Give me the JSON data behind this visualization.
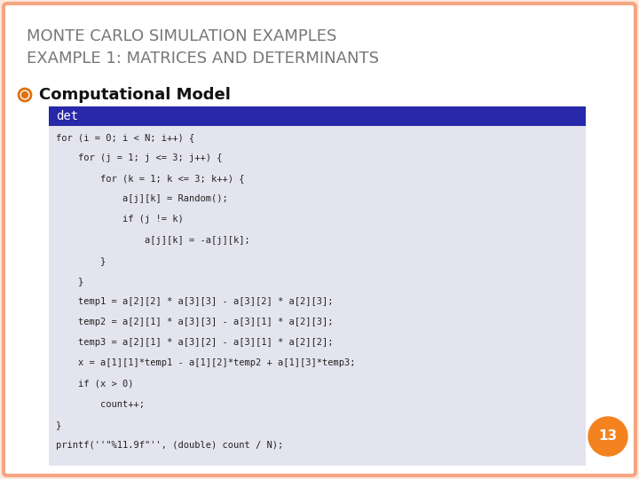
{
  "title_line1": "MONTE CARLO SIMULATION EXAMPLES",
  "title_line2": "EXAMPLE 1: MATRICES AND DETERMINANTS",
  "title_color": "#777777",
  "title_fontsize": 13,
  "bg_color": "#FFFFFF",
  "border_color": "#F4A582",
  "slide_bg": "#FDE8DE",
  "bullet_label": "Computational Model",
  "bullet_color": "#E07010",
  "bullet_fontsize": 13,
  "bullet_circle_color": "#E07010",
  "code_header": "det",
  "code_header_bg": "#2828AA",
  "code_header_color": "#FFFFFF",
  "code_bg": "#E4E4EE",
  "code_color": "#222222",
  "code_fontsize": 7.5,
  "code_lines": [
    "for (i = 0; i < N; i++) {",
    "    for (j = 1; j <= 3; j++) {",
    "        for (k = 1; k <= 3; k++) {",
    "            a[j][k] = Random();",
    "            if (j != k)",
    "                a[j][k] = -a[j][k];",
    "        }",
    "    }",
    "    temp1 = a[2][2] * a[3][3] - a[3][2] * a[2][3];",
    "    temp2 = a[2][1] * a[3][3] - a[3][1] * a[2][3];",
    "    temp3 = a[2][1] * a[3][2] - a[3][1] * a[2][2];",
    "    x = a[1][1]*temp1 - a[1][2]*temp2 + a[1][3]*temp3;",
    "    if (x > 0)",
    "        count++;",
    "}",
    "printf(''\"%11.9f\"'', (double) count / N);"
  ],
  "page_number": "13",
  "page_circle_color": "#F4821E",
  "page_text_color": "#FFFFFF",
  "page_fontsize": 11
}
